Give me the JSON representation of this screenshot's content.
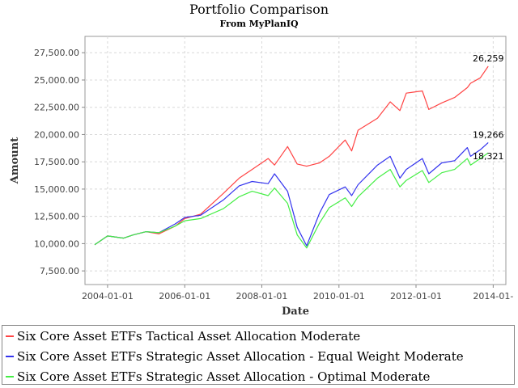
{
  "chart_data": {
    "type": "line",
    "title": "Portfolio Comparison",
    "subtitle": "From MyPlanIQ",
    "xlabel": "Date",
    "ylabel": "Amount",
    "xlim": [
      "2003-06-01",
      "2014-05-01"
    ],
    "ylim": [
      6250,
      29000
    ],
    "x_ticks": [
      "2004-01-01",
      "2006-01-01",
      "2008-01-01",
      "2010-01-01",
      "2012-01-01",
      "2014-01-01"
    ],
    "x_tick_labels": [
      "2004-01-01",
      "2006-01-01",
      "2008-01-01",
      "2010-01-01",
      "2012-01-01",
      "2014-01-"
    ],
    "y_ticks": [
      7500,
      10000,
      12500,
      15000,
      17500,
      20000,
      22500,
      25000,
      27500
    ],
    "y_tick_labels": [
      "7,500.00",
      "10,000.00",
      "12,500.00",
      "15,000.00",
      "17,500.00",
      "20,000.00",
      "22,500.00",
      "25,000.00",
      "27,500.00"
    ],
    "grid": true,
    "legend_position": "bottom",
    "series": [
      {
        "name": "Six Core Asset ETFs Tactical Asset Allocation Moderate",
        "color": "#ff4444",
        "end_label": "26,259",
        "x": [
          "2003-09-01",
          "2004-01-01",
          "2004-06-01",
          "2004-09-01",
          "2005-01-01",
          "2005-05-01",
          "2005-10-01",
          "2006-01-01",
          "2006-06-01",
          "2007-01-01",
          "2007-06-01",
          "2007-10-01",
          "2008-03-01",
          "2008-05-01",
          "2008-09-01",
          "2008-12-01",
          "2009-03-01",
          "2009-07-01",
          "2009-10-01",
          "2010-03-01",
          "2010-05-01",
          "2010-07-01",
          "2011-01-01",
          "2011-05-01",
          "2011-08-01",
          "2011-10-01",
          "2012-03-01",
          "2012-05-01",
          "2012-09-01",
          "2013-01-01",
          "2013-05-01",
          "2013-06-01",
          "2013-09-01",
          "2013-11-15"
        ],
        "y": [
          9900,
          10700,
          10500,
          10800,
          11100,
          10900,
          11600,
          12300,
          12700,
          14600,
          16000,
          16800,
          17800,
          17200,
          18900,
          17300,
          17100,
          17400,
          18000,
          19500,
          18500,
          20400,
          21500,
          23000,
          22200,
          23800,
          24000,
          22300,
          22900,
          23400,
          24300,
          24700,
          25200,
          26259
        ]
      },
      {
        "name": "Six Core Asset ETFs Strategic Asset Allocation - Equal Weight Moderate",
        "color": "#3333ee",
        "end_label": "19,266",
        "x": [
          "2003-09-01",
          "2004-01-01",
          "2004-06-01",
          "2004-09-01",
          "2005-01-01",
          "2005-05-01",
          "2005-10-01",
          "2006-01-01",
          "2006-06-01",
          "2007-01-01",
          "2007-06-01",
          "2007-10-01",
          "2008-03-01",
          "2008-05-01",
          "2008-09-01",
          "2008-12-01",
          "2009-03-01",
          "2009-07-01",
          "2009-10-01",
          "2010-03-01",
          "2010-05-01",
          "2010-07-01",
          "2011-01-01",
          "2011-05-01",
          "2011-08-01",
          "2011-10-01",
          "2012-03-01",
          "2012-05-01",
          "2012-09-01",
          "2013-01-01",
          "2013-05-01",
          "2013-06-01",
          "2013-09-01",
          "2013-11-15"
        ],
        "y": [
          9900,
          10700,
          10500,
          10800,
          11100,
          11000,
          11800,
          12400,
          12600,
          14000,
          15300,
          15700,
          15500,
          16400,
          14800,
          11500,
          9800,
          12800,
          14500,
          15200,
          14400,
          15400,
          17200,
          18000,
          16000,
          16800,
          17800,
          16400,
          17400,
          17600,
          18800,
          18000,
          18600,
          19266
        ]
      },
      {
        "name": "Six Core Asset ETFs Strategic Asset Allocation - Optimal Moderate",
        "color": "#44ee44",
        "end_label": "18,321",
        "x": [
          "2003-09-01",
          "2004-01-01",
          "2004-06-01",
          "2004-09-01",
          "2005-01-01",
          "2005-05-01",
          "2005-10-01",
          "2006-01-01",
          "2006-06-01",
          "2007-01-01",
          "2007-06-01",
          "2007-10-01",
          "2008-03-01",
          "2008-05-01",
          "2008-09-01",
          "2008-12-01",
          "2009-03-01",
          "2009-07-01",
          "2009-10-01",
          "2010-03-01",
          "2010-05-01",
          "2010-07-01",
          "2011-01-01",
          "2011-05-01",
          "2011-08-01",
          "2011-10-01",
          "2012-03-01",
          "2012-05-01",
          "2012-09-01",
          "2013-01-01",
          "2013-05-01",
          "2013-06-01",
          "2013-09-01",
          "2013-11-15"
        ],
        "y": [
          9900,
          10700,
          10500,
          10800,
          11100,
          11000,
          11600,
          12100,
          12300,
          13200,
          14300,
          14800,
          14400,
          15100,
          13700,
          10800,
          9600,
          11900,
          13300,
          14200,
          13400,
          14300,
          16000,
          16800,
          15200,
          15800,
          16700,
          15600,
          16500,
          16800,
          17800,
          17200,
          17800,
          18321
        ]
      }
    ]
  }
}
